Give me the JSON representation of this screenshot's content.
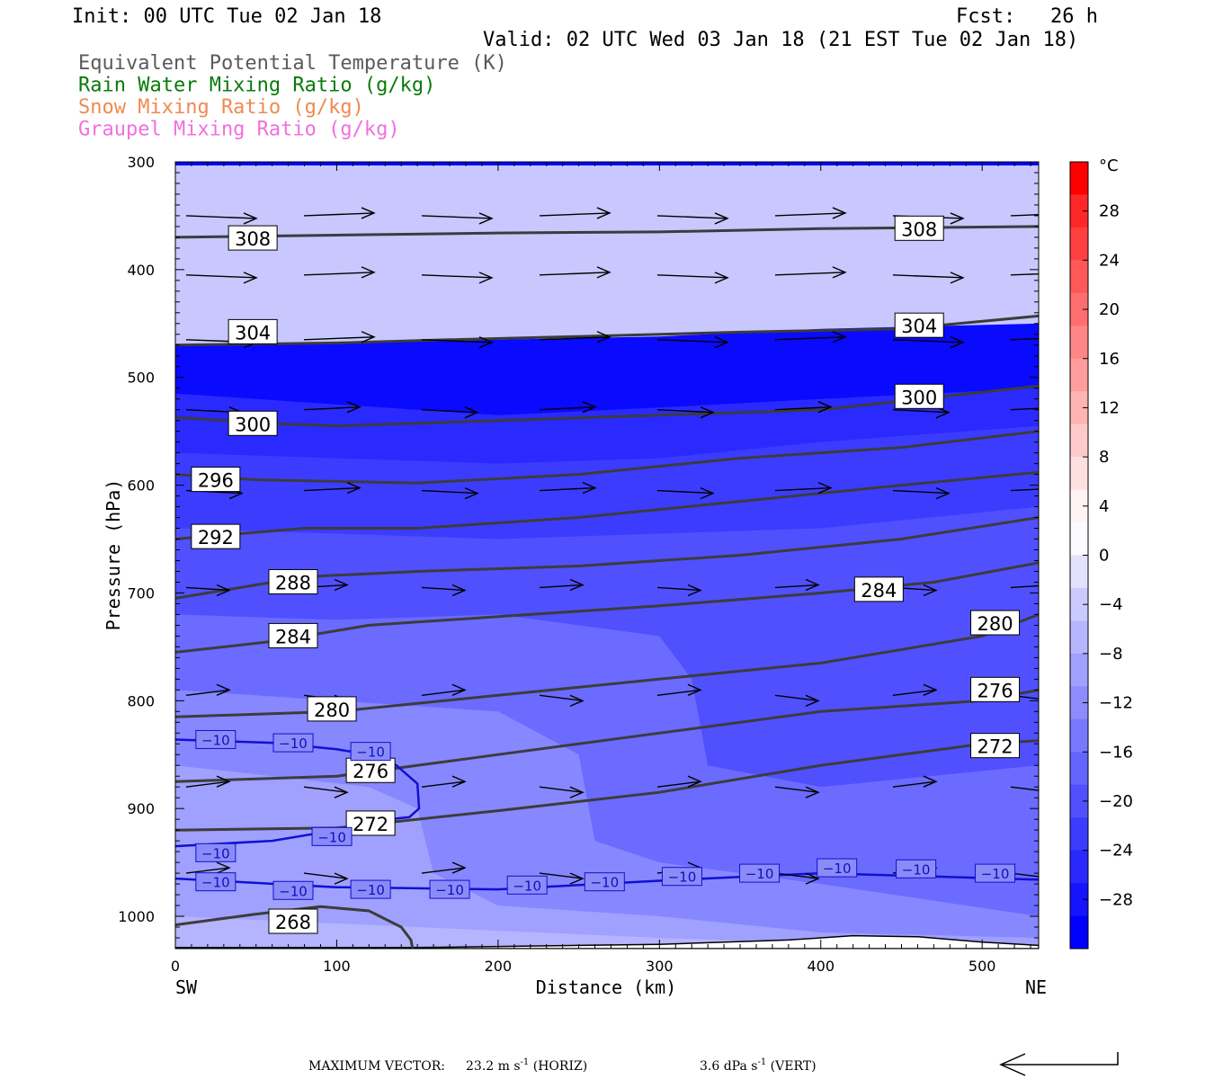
{
  "header": {
    "init": "Init: 00 UTC Tue 02 Jan 18",
    "fcst_label": "Fcst:",
    "fcst_value": "26 h",
    "valid": "Valid: 02 UTC Wed 03 Jan 18 (21 EST Tue 02 Jan 18)"
  },
  "legend": [
    {
      "label": "Equivalent Potential Temperature (K)",
      "color": "#5a5a5a"
    },
    {
      "label": "Rain Water Mixing Ratio (g/kg)",
      "color": "#0a7a0a"
    },
    {
      "label": "Snow Mixing Ratio (g/kg)",
      "color": "#f08a50"
    },
    {
      "label": "Graupel Mixing Ratio (g/kg)",
      "color": "#f070e0"
    }
  ],
  "axes": {
    "xlabel": "Distance (km)",
    "ylabel": "Pressure (hPa)",
    "left_end_label": "SW",
    "right_end_label": "NE"
  },
  "footer": {
    "max_vector_label": "MAXIMUM VECTOR:",
    "horiz": "23.2 m s",
    "horiz_exp": "-1",
    "horiz_tag": "(HORIZ)",
    "vert": "3.6 dPa s",
    "vert_exp": "-1",
    "vert_tag": "(VERT)"
  },
  "chart_data": {
    "type": "heatmap",
    "title": "",
    "xlabel": "Distance (km)",
    "ylabel": "Pressure (hPa)",
    "xlim": [
      0,
      535
    ],
    "ylim": [
      1030,
      300
    ],
    "x_ticks": [
      0,
      100,
      200,
      300,
      400,
      500
    ],
    "y_ticks": [
      300,
      400,
      500,
      600,
      700,
      800,
      900,
      1000
    ],
    "colorbar": {
      "unit": "°C",
      "ticks": [
        28,
        24,
        20,
        16,
        12,
        8,
        4,
        0,
        -4,
        -8,
        -12,
        -16,
        -20,
        -24,
        -28
      ],
      "colors": [
        "#ff0000",
        "#ff2828",
        "#ff4040",
        "#ff5858",
        "#ff6e6e",
        "#ff8686",
        "#ff9c9c",
        "#ffb4b4",
        "#ffcaca",
        "#ffe0e0",
        "#fff4f4",
        "#fafaff",
        "#e2e2ff",
        "#cacaff",
        "#b6b6ff",
        "#a0a0ff",
        "#8c8cff",
        "#7878ff",
        "#6464ff",
        "#5050ff",
        "#3c3cff",
        "#2828ff",
        "#1414ff",
        "#0000ff"
      ]
    },
    "temperature_bands": [
      {
        "label": "-28",
        "color": "#0a0aff",
        "boundary": [
          [
            0,
            470
          ],
          [
            100,
            468
          ],
          [
            200,
            465
          ],
          [
            300,
            462
          ],
          [
            400,
            455
          ],
          [
            535,
            450
          ]
        ]
      },
      {
        "label": "-24",
        "color": "#2a2aff",
        "boundary": [
          [
            0,
            515
          ],
          [
            100,
            525
          ],
          [
            200,
            535
          ],
          [
            300,
            528
          ],
          [
            400,
            520
          ],
          [
            535,
            510
          ]
        ]
      },
      {
        "label": "-20",
        "color": "#3c3cff",
        "boundary": [
          [
            0,
            570
          ],
          [
            100,
            575
          ],
          [
            200,
            580
          ],
          [
            300,
            575
          ],
          [
            400,
            560
          ],
          [
            535,
            545
          ]
        ]
      },
      {
        "label": "-16",
        "color": "#5050ff",
        "boundary": [
          [
            0,
            640
          ],
          [
            100,
            645
          ],
          [
            200,
            650
          ],
          [
            300,
            645
          ],
          [
            400,
            640
          ],
          [
            535,
            620
          ]
        ]
      },
      {
        "label": "-12",
        "color": "#6b6bff",
        "boundary": [
          [
            0,
            720
          ],
          [
            100,
            725
          ],
          [
            200,
            720
          ],
          [
            300,
            740
          ],
          [
            320,
            780
          ],
          [
            330,
            860
          ],
          [
            400,
            880
          ],
          [
            535,
            860
          ]
        ]
      },
      {
        "label": "-8",
        "color": "#8787ff",
        "boundary": [
          [
            0,
            790
          ],
          [
            100,
            800
          ],
          [
            200,
            810
          ],
          [
            250,
            850
          ],
          [
            260,
            930
          ],
          [
            300,
            950
          ],
          [
            400,
            970
          ],
          [
            535,
            1000
          ]
        ]
      },
      {
        "label": "-4",
        "color": "#a0a0ff",
        "boundary": [
          [
            0,
            860
          ],
          [
            60,
            870
          ],
          [
            120,
            880
          ],
          [
            150,
            900
          ],
          [
            160,
            960
          ],
          [
            200,
            990
          ],
          [
            300,
            1000
          ],
          [
            400,
            1015
          ],
          [
            535,
            1020
          ]
        ]
      },
      {
        "label": "0",
        "color": "#b4b4ff",
        "boundary": [
          [
            0,
            1000
          ],
          [
            150,
            1010
          ],
          [
            300,
            1020
          ],
          [
            400,
            1025
          ],
          [
            535,
            1028
          ]
        ]
      },
      {
        "label": "4",
        "color": "#c8c8ff",
        "boundary": [
          [
            0,
            1030
          ],
          [
            535,
            1030
          ]
        ]
      }
    ],
    "theta_e_contours": [
      {
        "value": 308,
        "points": [
          [
            0,
            370
          ],
          [
            100,
            368
          ],
          [
            200,
            366
          ],
          [
            300,
            365
          ],
          [
            400,
            362
          ],
          [
            535,
            360
          ]
        ],
        "labels": [
          [
            48,
            371
          ],
          [
            461,
            362
          ]
        ]
      },
      {
        "value": 304,
        "points": [
          [
            0,
            470
          ],
          [
            100,
            468
          ],
          [
            170,
            465
          ],
          [
            250,
            462
          ],
          [
            350,
            458
          ],
          [
            450,
            455
          ],
          [
            535,
            443
          ]
        ],
        "labels": [
          [
            48,
            458
          ],
          [
            461,
            452
          ]
        ]
      },
      {
        "value": 300,
        "points": [
          [
            0,
            537
          ],
          [
            50,
            542
          ],
          [
            100,
            545
          ],
          [
            200,
            540
          ],
          [
            300,
            535
          ],
          [
            400,
            530
          ],
          [
            450,
            522
          ],
          [
            535,
            508
          ]
        ],
        "labels": [
          [
            48,
            543
          ],
          [
            461,
            518
          ]
        ]
      },
      {
        "value": 296,
        "points": [
          [
            0,
            590
          ],
          [
            50,
            595
          ],
          [
            150,
            598
          ],
          [
            250,
            590
          ],
          [
            350,
            575
          ],
          [
            450,
            565
          ],
          [
            535,
            550
          ]
        ],
        "labels": [
          [
            25,
            595
          ]
        ]
      },
      {
        "value": 292,
        "points": [
          [
            0,
            650
          ],
          [
            80,
            640
          ],
          [
            150,
            640
          ],
          [
            250,
            630
          ],
          [
            350,
            615
          ],
          [
            450,
            600
          ],
          [
            535,
            588
          ]
        ],
        "labels": [
          [
            25,
            648
          ]
        ]
      },
      {
        "value": 288,
        "points": [
          [
            0,
            705
          ],
          [
            40,
            695
          ],
          [
            80,
            685
          ],
          [
            150,
            680
          ],
          [
            250,
            675
          ],
          [
            350,
            665
          ],
          [
            450,
            650
          ],
          [
            535,
            630
          ]
        ],
        "labels": [
          [
            73,
            690
          ]
        ]
      },
      {
        "value": 284,
        "points": [
          [
            0,
            755
          ],
          [
            60,
            745
          ],
          [
            120,
            730
          ],
          [
            200,
            722
          ],
          [
            300,
            712
          ],
          [
            400,
            700
          ],
          [
            470,
            690
          ],
          [
            535,
            672
          ]
        ],
        "labels": [
          [
            73,
            740
          ],
          [
            436,
            697
          ]
        ]
      },
      {
        "value": 280,
        "points": [
          [
            0,
            815
          ],
          [
            100,
            810
          ],
          [
            200,
            795
          ],
          [
            300,
            780
          ],
          [
            400,
            765
          ],
          [
            500,
            740
          ],
          [
            535,
            720
          ]
        ],
        "labels": [
          [
            97,
            808
          ],
          [
            508,
            728
          ]
        ]
      },
      {
        "value": 276,
        "points": [
          [
            0,
            875
          ],
          [
            100,
            870
          ],
          [
            200,
            850
          ],
          [
            300,
            830
          ],
          [
            400,
            810
          ],
          [
            500,
            800
          ],
          [
            535,
            790
          ]
        ],
        "labels": [
          [
            121,
            865
          ],
          [
            508,
            790
          ]
        ]
      },
      {
        "value": 272,
        "points": [
          [
            0,
            920
          ],
          [
            100,
            918
          ],
          [
            200,
            902
          ],
          [
            300,
            885
          ],
          [
            400,
            860
          ],
          [
            500,
            840
          ],
          [
            535,
            837
          ]
        ],
        "labels": [
          [
            121,
            914
          ],
          [
            508,
            842
          ]
        ]
      },
      {
        "value": 268,
        "points": [
          [
            0,
            1008
          ],
          [
            50,
            998
          ],
          [
            90,
            991
          ],
          [
            120,
            995
          ],
          [
            140,
            1010
          ],
          [
            146,
            1022
          ],
          [
            147,
            1030
          ]
        ],
        "labels": [
          [
            73,
            1005
          ]
        ]
      }
    ],
    "temp_contour_minus10": [
      {
        "points": [
          [
            0,
            836
          ],
          [
            60,
            839
          ],
          [
            100,
            845
          ],
          [
            120,
            850
          ],
          [
            137,
            860
          ],
          [
            150,
            877
          ],
          [
            151,
            900
          ],
          [
            145,
            908
          ],
          [
            120,
            912
          ],
          [
            100,
            920
          ],
          [
            60,
            930
          ],
          [
            0,
            935
          ]
        ],
        "labels": [
          [
            25,
            836
          ],
          [
            73,
            839
          ],
          [
            121,
            847
          ],
          [
            25,
            941
          ],
          [
            97,
            926
          ]
        ]
      },
      {
        "points": [
          [
            0,
            965
          ],
          [
            100,
            973
          ],
          [
            200,
            975
          ],
          [
            300,
            967
          ],
          [
            400,
            960
          ],
          [
            535,
            966
          ]
        ],
        "labels": [
          [
            25,
            968
          ],
          [
            73,
            976
          ],
          [
            121,
            975
          ],
          [
            170,
            975
          ],
          [
            218,
            971
          ],
          [
            266,
            968
          ],
          [
            314,
            963
          ],
          [
            362,
            960
          ],
          [
            410,
            955
          ],
          [
            459,
            956
          ],
          [
            508,
            960
          ]
        ]
      }
    ],
    "wind_rows_hpa": [
      350,
      405,
      465,
      530,
      605,
      695,
      795,
      880,
      960
    ]
  }
}
